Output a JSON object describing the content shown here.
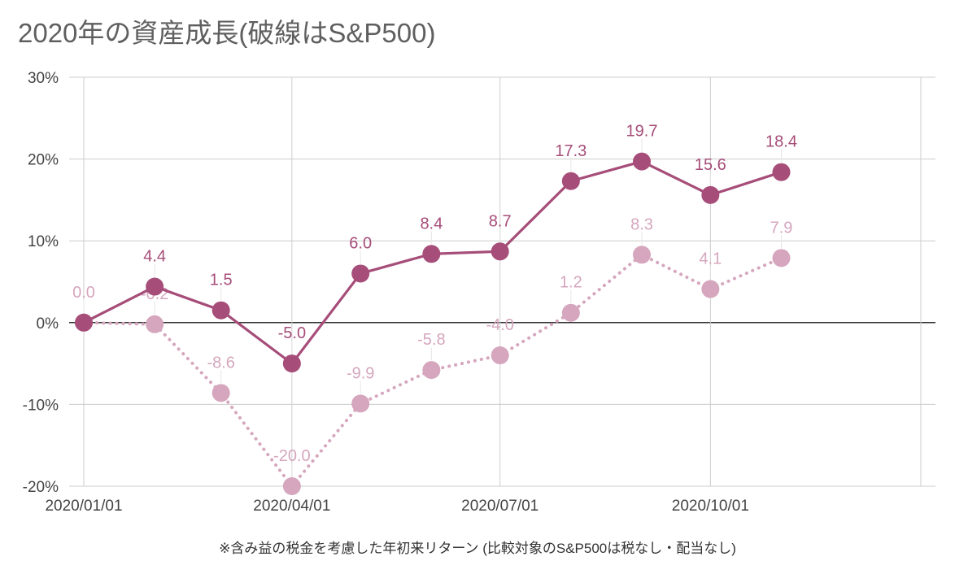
{
  "chart_data": {
    "type": "line",
    "title": "2020年の資産成長(破線はS&P500)",
    "footnote": "※含み益の税金を考慮した年初来リターン (比較対象のS&P500は税なし・配当なし)",
    "x": [
      "2020/01/01",
      "2020/02/01",
      "2020/03/01",
      "2020/04/01",
      "2020/05/01",
      "2020/06/01",
      "2020/07/01",
      "2020/08/01",
      "2020/09/01",
      "2020/10/01",
      "2020/11/01"
    ],
    "x_ticks": [
      "2020/01/01",
      "2020/04/01",
      "2020/07/01",
      "2020/10/01"
    ],
    "xlim": [
      "2020/01/01",
      "2021/01/01"
    ],
    "ylim": [
      -20,
      30
    ],
    "y_ticks": [
      -20,
      -10,
      0,
      10,
      20,
      30
    ],
    "y_tick_labels": [
      "-20%",
      "-10%",
      "0%",
      "10%",
      "20%",
      "30%"
    ],
    "grid": true,
    "series": [
      {
        "style": "solid",
        "color": "#a64d79",
        "values": [
          0.0,
          4.4,
          1.5,
          -5.0,
          6.0,
          8.4,
          8.7,
          17.3,
          19.7,
          15.6,
          18.4
        ],
        "labels": [
          "",
          "4.4",
          "1.5",
          "-5.0",
          "6.0",
          "8.4",
          "8.7",
          "17.3",
          "19.7",
          "15.6",
          "18.4"
        ]
      },
      {
        "style": "dotted",
        "color": "#d5a6bd",
        "values": [
          0.0,
          -0.2,
          -8.6,
          -20.0,
          -9.9,
          -5.8,
          -4.0,
          1.2,
          8.3,
          4.1,
          7.9
        ],
        "labels": [
          "0.0",
          "-0.2",
          "-8.6",
          "-20.0",
          "-9.9",
          "-5.8",
          "-4.0",
          "1.2",
          "8.3",
          "4.1",
          "7.9"
        ]
      }
    ]
  }
}
